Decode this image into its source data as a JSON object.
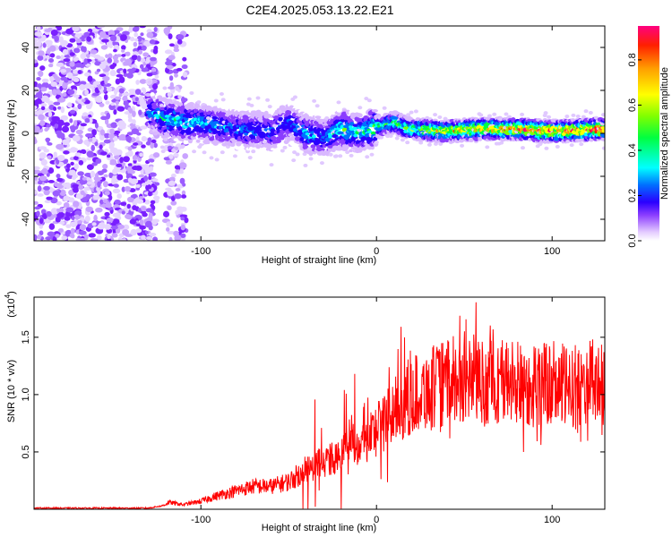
{
  "title": "C2E4.2025.053.13.22.E21",
  "chart_data": [
    {
      "type": "heatmap",
      "xlabel": "Height of straight line (km)",
      "ylabel": "Frequency (Hz)",
      "xlim": [
        -195,
        130
      ],
      "ylim": [
        -50,
        50
      ],
      "x_ticks": [
        -100,
        0,
        100
      ],
      "y_ticks": [
        -40,
        -20,
        0,
        20,
        40
      ],
      "colorbar": {
        "label": "Normalized spectral amplitude",
        "range": [
          0.0,
          0.95
        ],
        "ticks": [
          "0.0",
          "0.2",
          "0.4",
          "0.6",
          "0.8"
        ],
        "colors": [
          "#ffffff",
          "#d9b8ff",
          "#8b3dff",
          "#2a00ff",
          "#0070ff",
          "#00ffff",
          "#00ff40",
          "#80ff00",
          "#ffff00",
          "#ffa000",
          "#ff2000",
          "#ff0080"
        ]
      },
      "ridge": {
        "description_free": true,
        "x": [
          -130,
          -120,
          -110,
          -100,
          -80,
          -60,
          -50,
          -40,
          -30,
          -20,
          -10,
          0,
          10,
          20,
          40,
          60,
          80,
          100,
          130
        ],
        "freq": [
          10,
          7,
          5,
          5,
          2,
          1,
          5,
          0,
          -2,
          2,
          0,
          3,
          5,
          2,
          1,
          2,
          2,
          1,
          2
        ],
        "amplitude": [
          0.35,
          0.45,
          0.45,
          0.4,
          0.35,
          0.35,
          0.3,
          0.4,
          0.35,
          0.5,
          0.45,
          0.55,
          0.5,
          0.6,
          0.7,
          0.75,
          0.8,
          0.85,
          0.9
        ]
      },
      "noise_region_x": [
        -195,
        -125
      ],
      "noise_region2_x": [
        -120,
        -108
      ]
    },
    {
      "type": "line",
      "xlabel": "Height of straight line (km)",
      "ylabel": "SNR (10 * v/v)",
      "y_multiplier": "(x10",
      "y_multiplier_exp": "4",
      "xlim": [
        -195,
        130
      ],
      "ylim": [
        0,
        1.85
      ],
      "x_ticks": [
        -100,
        0,
        100
      ],
      "y_ticks": [
        "0.5",
        "1.0",
        "1.5"
      ],
      "color": "#ff0000",
      "series": [
        {
          "x": [
            -195,
            -160,
            -140,
            -130,
            -122,
            -118,
            -110,
            -100,
            -90,
            -80,
            -70,
            -60,
            -50,
            -40,
            -30,
            -20,
            -15,
            -10,
            0,
            10,
            20,
            30,
            40,
            50,
            60,
            70,
            80,
            90,
            100,
            110,
            120,
            130
          ],
          "y": [
            0.01,
            0.01,
            0.01,
            0.01,
            0.03,
            0.06,
            0.04,
            0.07,
            0.12,
            0.16,
            0.2,
            0.2,
            0.24,
            0.35,
            0.42,
            0.45,
            0.65,
            0.55,
            0.7,
            0.85,
            1.0,
            1.05,
            1.1,
            1.15,
            1.1,
            1.12,
            1.1,
            1.08,
            1.1,
            1.05,
            1.1,
            1.1
          ]
        }
      ]
    }
  ]
}
